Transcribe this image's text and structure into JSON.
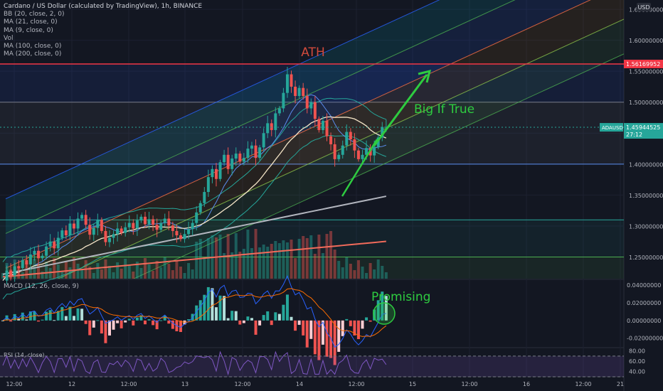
{
  "header": {
    "title": "Cardano / US Dollar (calculated by TradingView), 1h, BINANCE",
    "indicators": [
      "BB (20, close, 2, 0)",
      "MA (21, close, 0)",
      "MA (9, close, 0)",
      "Vol",
      "MA (100, close, 0)",
      "MA (200, close, 0)"
    ]
  },
  "price_axis": {
    "currency": "USD",
    "ticks": [
      "1.65000000",
      "1.60000000",
      "1.55000000",
      "1.50000000",
      "1.45000000",
      "1.40000000",
      "1.35000000",
      "1.30000000",
      "1.25000000"
    ],
    "ath_tag": "1.56169952",
    "symbol_tag": "ADAUSD",
    "last_price_tag": "1.45944525",
    "countdown": "27:12"
  },
  "time_axis": {
    "ticks": [
      "12:00",
      "12",
      "12:00",
      "13",
      "12:00",
      "14",
      "12:00",
      "15",
      "12:00",
      "16",
      "12:00",
      "21"
    ]
  },
  "annotations": {
    "ath": "ATH",
    "big_if_true": "Big If True",
    "promising": "Promising"
  },
  "macd": {
    "title": "MACD (12, 26, close, 9)",
    "ticks": [
      "0.04000000",
      "0.02000000",
      "0.00000000",
      "-0.02000000"
    ]
  },
  "rsi": {
    "title": "RSI (14, close)",
    "ticks": [
      "80.00",
      "60.00",
      "40.00"
    ]
  },
  "colors": {
    "background": "#131722",
    "up": "#26a69a",
    "down": "#ef5350",
    "arrow": "#2ecc40",
    "ath_line": "#f23645",
    "last_price": "#26a69a"
  },
  "chart_data": {
    "type": "candlestick",
    "symbol": "ADAUSD",
    "interval": "1h",
    "exchange": "BINANCE",
    "ylim": [
      1.215,
      1.665
    ],
    "close_series": [
      1.212,
      1.228,
      1.22,
      1.235,
      1.232,
      1.245,
      1.238,
      1.254,
      1.26,
      1.248,
      1.252,
      1.267,
      1.275,
      1.264,
      1.281,
      1.293,
      1.285,
      1.304,
      1.296,
      1.312,
      1.318,
      1.302,
      1.286,
      1.297,
      1.31,
      1.292,
      1.274,
      1.281,
      1.287,
      1.296,
      1.289,
      1.298,
      1.305,
      1.296,
      1.309,
      1.315,
      1.303,
      1.311,
      1.302,
      1.294,
      1.305,
      1.312,
      1.301,
      1.292,
      1.285,
      1.279,
      1.287,
      1.295,
      1.305,
      1.322,
      1.337,
      1.355,
      1.379,
      1.392,
      1.376,
      1.403,
      1.415,
      1.392,
      1.409,
      1.417,
      1.404,
      1.41,
      1.425,
      1.43,
      1.41,
      1.427,
      1.45,
      1.466,
      1.455,
      1.482,
      1.49,
      1.515,
      1.545,
      1.525,
      1.51,
      1.523,
      1.51,
      1.49,
      1.5,
      1.473,
      1.455,
      1.47,
      1.445,
      1.432,
      1.408,
      1.415,
      1.43,
      1.452,
      1.44,
      1.422,
      1.408,
      1.415,
      1.426,
      1.414,
      1.428,
      1.443,
      1.46,
      1.46
    ],
    "ath": 1.56169952,
    "last_price": 1.45944525,
    "horizontal_levels": [
      1.56169952,
      1.5,
      1.4,
      1.31,
      1.25
    ],
    "channel": {
      "start_price": 1.232,
      "end_price": 1.69,
      "width": 0.056,
      "bands": 4
    },
    "macd_range": [
      -0.03,
      0.045
    ],
    "rsi_range": [
      30,
      85
    ]
  }
}
